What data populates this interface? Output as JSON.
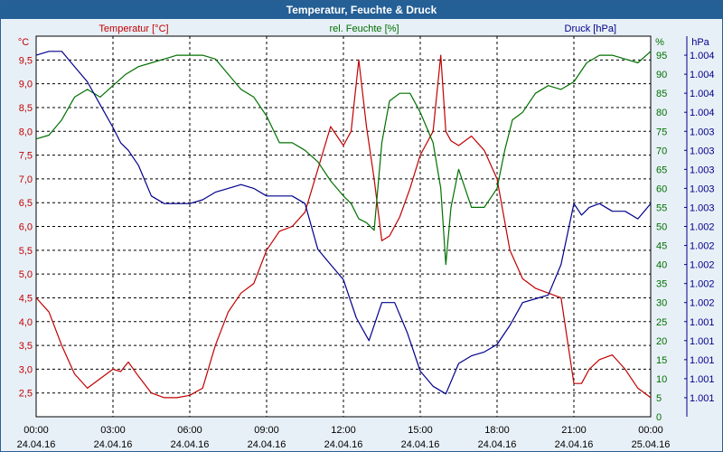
{
  "window": {
    "title": "Temperatur, Feuchte & Druck"
  },
  "chart_data": {
    "type": "line",
    "title": "Temperatur, Feuchte & Druck",
    "x_ticks": [
      {
        "time": "00:00",
        "date": "24.04.16",
        "h": 0
      },
      {
        "time": "03:00",
        "date": "24.04.16",
        "h": 3
      },
      {
        "time": "06:00",
        "date": "24.04.16",
        "h": 6
      },
      {
        "time": "09:00",
        "date": "24.04.16",
        "h": 9
      },
      {
        "time": "12:00",
        "date": "24.04.16",
        "h": 12
      },
      {
        "time": "15:00",
        "date": "24.04.16",
        "h": 15
      },
      {
        "time": "18:00",
        "date": "24.04.16",
        "h": 18
      },
      {
        "time": "21:00",
        "date": "24.04.16",
        "h": 21
      },
      {
        "time": "00:00",
        "date": "25.04.16",
        "h": 24
      }
    ],
    "x_range_hours": [
      0,
      24
    ],
    "grid": true,
    "axes": {
      "temperature": {
        "label": "Temperatur [°C]",
        "unit": "°C",
        "color": "#c00000",
        "ylim": [
          2.0,
          10.0
        ],
        "ticks": [
          2.5,
          3.0,
          3.5,
          4.0,
          4.5,
          5.0,
          5.5,
          6.0,
          6.5,
          7.0,
          7.5,
          8.0,
          8.5,
          9.0,
          9.5
        ],
        "tick_labels": [
          "2,5",
          "3,0",
          "3,5",
          "4,0",
          "4,5",
          "5,0",
          "5,5",
          "6,0",
          "6,5",
          "7,0",
          "7,5",
          "8,0",
          "8,5",
          "9,0",
          "9,5"
        ]
      },
      "humidity": {
        "label": "rel. Feuchte [%]",
        "unit": "%",
        "color": "#007000",
        "ylim": [
          0,
          100
        ],
        "ticks": [
          0,
          5,
          10,
          15,
          20,
          25,
          30,
          35,
          40,
          45,
          50,
          55,
          60,
          65,
          70,
          75,
          80,
          85,
          90,
          95
        ],
        "tick_labels": [
          "0",
          "5",
          "10",
          "15",
          "20",
          "25",
          "30",
          "35",
          "40",
          "45",
          "50",
          "55",
          "60",
          "65",
          "70",
          "75",
          "80",
          "85",
          "90",
          "95"
        ]
      },
      "pressure": {
        "label": "Druck [hPa]",
        "unit": "hPa",
        "color": "#00008b",
        "ylim": [
          0,
          1
        ],
        "ticks": [
          0.05,
          0.1,
          0.15,
          0.2,
          0.25,
          0.3,
          0.35,
          0.4,
          0.45,
          0.5,
          0.55,
          0.6,
          0.65,
          0.7,
          0.75,
          0.8,
          0.85,
          0.9,
          0.95
        ],
        "tick_labels": [
          "1.001",
          "1.001",
          "1.001",
          "1.001",
          "1.001",
          "1.002",
          "1.002",
          "1.002",
          "1.002",
          "1.002",
          "1.003",
          "1.003",
          "1.003",
          "1.003",
          "1.003",
          "1.004",
          "1.004",
          "1.004",
          "1.004"
        ]
      }
    },
    "series": [
      {
        "name": "Temperatur [°C]",
        "axis": "temperature",
        "color": "#c00000",
        "x": [
          0,
          0.5,
          1,
          1.5,
          2,
          2.5,
          3,
          3.3,
          3.6,
          4,
          4.5,
          5,
          5.5,
          6,
          6.5,
          7,
          7.5,
          8,
          8.5,
          9,
          9.5,
          10,
          10.5,
          11,
          11.5,
          12,
          12.3,
          12.6,
          12.9,
          13.2,
          13.5,
          13.8,
          14.2,
          14.6,
          15,
          15.5,
          15.8,
          16,
          16.2,
          16.5,
          17,
          17.5,
          18,
          18.5,
          19,
          19.5,
          20,
          20.5,
          21,
          21.3,
          21.6,
          22,
          22.5,
          23,
          23.5,
          24
        ],
        "values": [
          4.5,
          4.2,
          3.5,
          2.9,
          2.6,
          2.8,
          3.0,
          2.95,
          3.15,
          2.85,
          2.5,
          2.4,
          2.4,
          2.45,
          2.6,
          3.5,
          4.2,
          4.6,
          4.8,
          5.5,
          5.9,
          6.0,
          6.3,
          7.2,
          8.1,
          7.7,
          8.0,
          9.5,
          8.1,
          7.0,
          5.7,
          5.8,
          6.2,
          6.8,
          7.5,
          8.0,
          9.6,
          8.0,
          7.8,
          7.7,
          7.9,
          7.6,
          7.0,
          5.5,
          4.9,
          4.7,
          4.6,
          4.5,
          2.7,
          2.7,
          3.0,
          3.2,
          3.3,
          3.0,
          2.6,
          2.4
        ]
      },
      {
        "name": "rel. Feuchte [%]",
        "axis": "humidity",
        "color": "#007000",
        "x": [
          0,
          0.5,
          1,
          1.5,
          2,
          2.5,
          3,
          3.5,
          4,
          4.5,
          5,
          5.5,
          6,
          6.5,
          7,
          7.5,
          8,
          8.5,
          9,
          9.5,
          10,
          10.5,
          11,
          11.5,
          12,
          12.3,
          12.6,
          12.9,
          13.2,
          13.5,
          13.8,
          14.2,
          14.6,
          15,
          15.5,
          15.8,
          16,
          16.2,
          16.5,
          17,
          17.5,
          18,
          18.3,
          18.6,
          19,
          19.5,
          20,
          20.5,
          21,
          21.5,
          22,
          22.5,
          23,
          23.5,
          24
        ],
        "values": [
          73,
          74,
          78,
          84,
          86,
          84,
          87,
          90,
          92,
          93,
          94,
          95,
          95,
          95,
          94,
          90,
          86,
          84,
          79,
          72,
          72,
          70,
          67,
          62,
          58,
          56,
          52,
          51,
          49,
          72,
          83,
          85,
          85,
          80,
          72,
          60,
          40,
          55,
          65,
          55,
          55,
          60,
          70,
          78,
          80,
          85,
          87,
          86,
          88,
          93,
          95,
          95,
          94,
          93,
          96
        ]
      },
      {
        "name": "Druck [hPa]",
        "axis": "pressure",
        "color": "#00008b",
        "x": [
          0,
          0.5,
          1,
          1.5,
          2,
          2.5,
          3,
          3.3,
          3.6,
          4,
          4.5,
          5,
          5.5,
          6,
          6.5,
          7,
          7.5,
          8,
          8.5,
          9,
          9.5,
          10,
          10.5,
          11,
          11.5,
          12,
          12.5,
          13,
          13.5,
          14,
          14.5,
          15,
          15.5,
          16,
          16.5,
          17,
          17.5,
          18,
          18.5,
          19,
          19.5,
          20,
          20.5,
          21,
          21.3,
          21.6,
          22,
          22.5,
          23,
          23.5,
          24
        ],
        "values": [
          0.95,
          0.96,
          0.96,
          0.92,
          0.88,
          0.82,
          0.76,
          0.72,
          0.7,
          0.66,
          0.58,
          0.56,
          0.56,
          0.56,
          0.57,
          0.59,
          0.6,
          0.61,
          0.6,
          0.58,
          0.58,
          0.58,
          0.56,
          0.44,
          0.4,
          0.36,
          0.26,
          0.2,
          0.3,
          0.3,
          0.22,
          0.12,
          0.08,
          0.06,
          0.14,
          0.16,
          0.17,
          0.19,
          0.24,
          0.3,
          0.31,
          0.32,
          0.4,
          0.56,
          0.53,
          0.55,
          0.56,
          0.54,
          0.54,
          0.52,
          0.56
        ]
      }
    ]
  }
}
